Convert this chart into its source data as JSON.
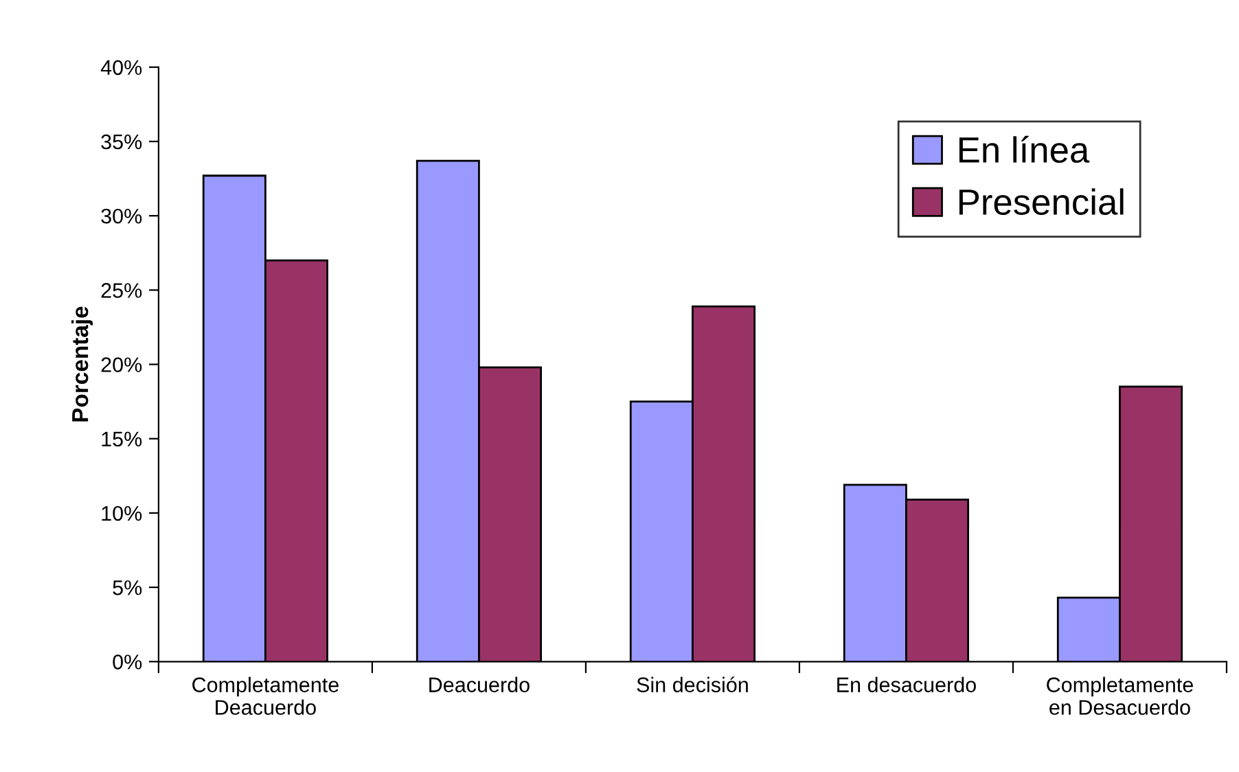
{
  "chart_data": {
    "type": "bar",
    "ylabel": "Porcentaje",
    "categories": [
      "Completamente\nDeacuerdo",
      "Deacuerdo",
      "Sin decisión",
      "En desacuerdo",
      "Completamente\nen Desacuerdo"
    ],
    "series": [
      {
        "name": "En línea",
        "color": "#9999ff",
        "values": [
          32.7,
          33.7,
          17.5,
          11.9,
          4.3
        ]
      },
      {
        "name": "Presencial",
        "color": "#993366",
        "values": [
          27.0,
          19.8,
          23.9,
          10.9,
          18.5
        ]
      }
    ],
    "ylim": [
      0,
      40
    ],
    "yticks": [
      {
        "value": 0,
        "label": "0%"
      },
      {
        "value": 5,
        "label": "5%"
      },
      {
        "value": 10,
        "label": "10%"
      },
      {
        "value": 15,
        "label": "15%"
      },
      {
        "value": 20,
        "label": "20%"
      },
      {
        "value": 25,
        "label": "25%"
      },
      {
        "value": 30,
        "label": "30%"
      },
      {
        "value": 35,
        "label": "35%"
      },
      {
        "value": 40,
        "label": "40%"
      }
    ],
    "grid": false,
    "legend": "top right"
  }
}
